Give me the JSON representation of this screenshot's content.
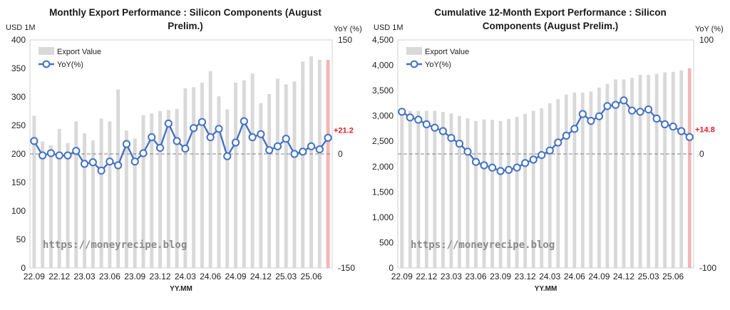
{
  "watermark": "https://moneyrecipe.blog",
  "colors": {
    "bar": "#d9d9d9",
    "bar_highlight": "#f2b6b6",
    "line": "#4472c4",
    "annotation": "#e0202a"
  },
  "chart_data": [
    {
      "type": "bar",
      "title": "Monthly Export Performance : Silicon Components (August Prelim.)",
      "y_unit_left": "USD 1M",
      "y_unit_right": "YoY (%)",
      "xlabel": "YY.MM",
      "ylim_left": [
        0,
        400
      ],
      "yticks_left": [
        "0",
        "50",
        "100",
        "150",
        "200",
        "250",
        "300",
        "350",
        "400"
      ],
      "ylim_right": [
        -150,
        150
      ],
      "yticks_right": [
        "-150",
        "0",
        "150"
      ],
      "x_tick_labels": [
        "22.09",
        "22.12",
        "23.03",
        "23.06",
        "23.09",
        "23.12",
        "24.03",
        "24.06",
        "24.09",
        "24.12",
        "25.03",
        "25.06"
      ],
      "categories": [
        "22.09",
        "22.10",
        "22.11",
        "22.12",
        "23.01",
        "23.02",
        "23.03",
        "23.04",
        "23.05",
        "23.06",
        "23.07",
        "23.08",
        "23.09",
        "23.10",
        "23.11",
        "23.12",
        "24.01",
        "24.02",
        "24.03",
        "24.04",
        "24.05",
        "24.06",
        "24.07",
        "24.08",
        "24.09",
        "24.10",
        "24.11",
        "24.12",
        "25.01",
        "25.02",
        "25.03",
        "25.04",
        "25.05",
        "25.06",
        "25.07",
        "25.08"
      ],
      "grid": false,
      "legend_position": "top-left",
      "series": [
        {
          "name": "Export Value",
          "type": "bar",
          "axis": "left",
          "values": [
            267,
            222,
            215,
            244,
            219,
            257,
            236,
            224,
            262,
            257,
            313,
            241,
            227,
            268,
            271,
            275,
            277,
            279,
            315,
            317,
            325,
            345,
            301,
            278,
            325,
            329,
            341,
            289,
            305,
            332,
            322,
            327,
            362,
            371,
            365,
            365
          ]
        },
        {
          "name": "YoY(%)",
          "type": "line",
          "axis": "right",
          "values": [
            17,
            -2,
            1,
            -2,
            -2,
            4,
            -13,
            -11,
            -22,
            -10,
            -15,
            13,
            -10,
            1,
            22,
            8,
            40,
            17,
            7,
            34,
            42,
            22,
            33,
            -3,
            15,
            43,
            22,
            26,
            5,
            10,
            20,
            0,
            3,
            10,
            6,
            21.2
          ]
        }
      ],
      "annotation": "+21.2"
    },
    {
      "type": "bar",
      "title": "Cumulative 12-Month Export Performance : Silicon Components (August Prelim.)",
      "y_unit_left": "USD 1M",
      "y_unit_right": "YoY (%)",
      "xlabel": "YY.MM",
      "ylim_left": [
        0,
        4500
      ],
      "yticks_left": [
        "0",
        "500",
        "1,000",
        "1,500",
        "2,000",
        "2,500",
        "3,000",
        "3,500",
        "4,000",
        "4,500"
      ],
      "ylim_right": [
        -100,
        100
      ],
      "yticks_right": [
        "-100",
        "0",
        "100"
      ],
      "x_tick_labels": [
        "22.09",
        "22.12",
        "23.03",
        "23.06",
        "23.09",
        "23.12",
        "24.03",
        "24.06",
        "24.09",
        "24.12",
        "25.03",
        "25.06"
      ],
      "categories": [
        "22.09",
        "22.10",
        "22.11",
        "22.12",
        "23.01",
        "23.02",
        "23.03",
        "23.04",
        "23.05",
        "23.06",
        "23.07",
        "23.08",
        "23.09",
        "23.10",
        "23.11",
        "23.12",
        "24.01",
        "24.02",
        "24.03",
        "24.04",
        "24.05",
        "24.06",
        "24.07",
        "24.08",
        "24.09",
        "24.10",
        "24.11",
        "24.12",
        "25.01",
        "25.02",
        "25.03",
        "25.04",
        "25.05",
        "25.06",
        "25.07",
        "25.08"
      ],
      "grid": false,
      "legend_position": "top-left",
      "series": [
        {
          "name": "Export Value",
          "type": "bar",
          "axis": "left",
          "values": [
            3100,
            3100,
            3100,
            3100,
            3100,
            3080,
            3050,
            3000,
            2950,
            2900,
            2930,
            2920,
            2900,
            2940,
            2980,
            3040,
            3100,
            3150,
            3250,
            3330,
            3420,
            3460,
            3460,
            3480,
            3560,
            3630,
            3720,
            3720,
            3750,
            3810,
            3810,
            3830,
            3860,
            3870,
            3900,
            3940
          ]
        },
        {
          "name": "YoY(%)",
          "type": "line",
          "axis": "right",
          "values": [
            37,
            32,
            30,
            26,
            23,
            20,
            14,
            9,
            2,
            -7,
            -10,
            -12,
            -15,
            -14,
            -12,
            -8,
            -5,
            -1,
            3,
            10,
            16,
            22,
            35,
            29,
            33,
            42,
            43,
            47,
            38,
            37,
            39,
            31,
            26,
            24,
            20,
            14.8
          ]
        }
      ],
      "annotation": "+14.8"
    }
  ]
}
